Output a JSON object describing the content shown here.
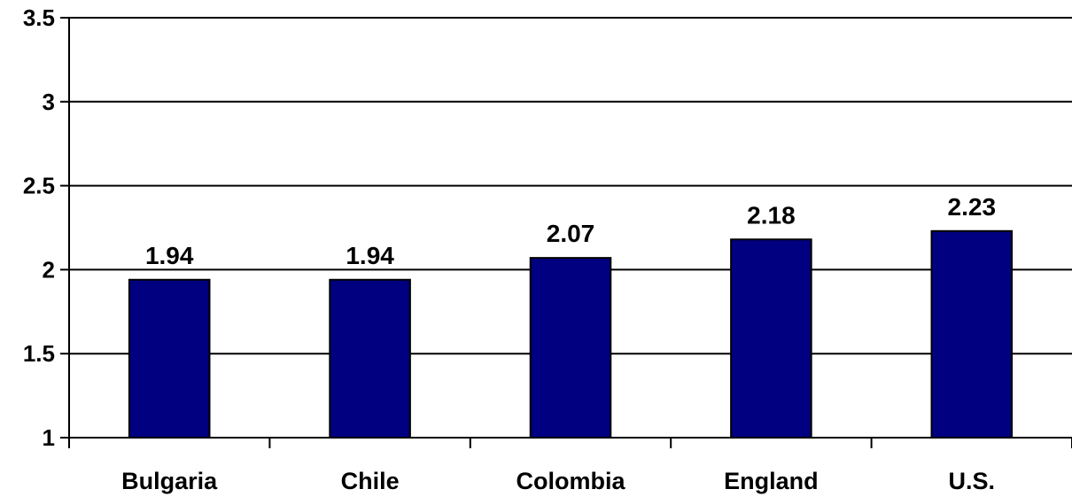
{
  "chart_data": {
    "type": "bar",
    "categories": [
      "Bulgaria",
      "Chile",
      "Colombia",
      "England",
      "U.S."
    ],
    "values": [
      1.94,
      1.94,
      2.07,
      2.18,
      2.23
    ],
    "data_labels": [
      "1.94",
      "1.94",
      "2.07",
      "2.18",
      "2.23"
    ],
    "title": "",
    "xlabel": "",
    "ylabel": "",
    "ylim": [
      1,
      3.5
    ],
    "yticks": [
      1,
      1.5,
      2,
      2.5,
      3,
      3.5
    ],
    "ytick_labels": [
      "1",
      "1.5",
      "2",
      "2.5",
      "3",
      "3.5"
    ],
    "grid": true,
    "legend": "none",
    "bar_color": "#000080",
    "bar_edge_color": "#000000"
  }
}
